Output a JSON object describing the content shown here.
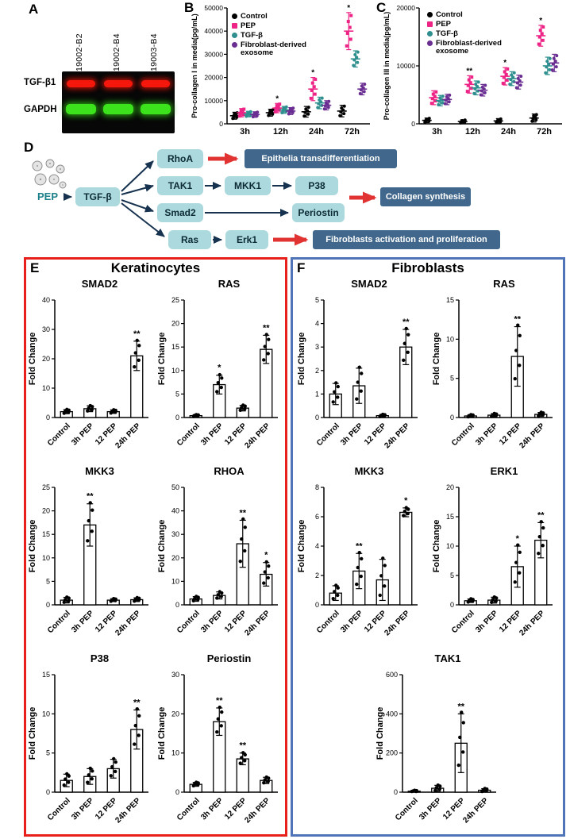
{
  "panel_a": {
    "label": "A",
    "lane_labels": [
      "19002-B2",
      "19002-B4",
      "19003-B4"
    ],
    "row_labels": [
      "TGF-β1",
      "GAPDH"
    ],
    "band_colors": {
      "tgfb1": "#f5170c",
      "gapdh": "#3ce31c"
    }
  },
  "panel_b": {
    "label": "B"
  },
  "panel_c": {
    "label": "C"
  },
  "panel_d": {
    "label": "D",
    "source_label": "PEP",
    "nodes": {
      "tgfb": "TGF-β",
      "rhoa": "RhoA",
      "tak1": "TAK1",
      "mkk1": "MKK1",
      "p38": "P38",
      "smad2": "Smad2",
      "periostin": "Periostin",
      "ras": "Ras",
      "erk1": "Erk1"
    },
    "outcomes": {
      "epithelia": "Epithelia transdifferentiation",
      "collagen": "Collagen synthesis",
      "fibroblasts": "Fibroblasts activation and proliferation"
    },
    "colors": {
      "node_fill": "#abd9de",
      "outcome_fill": "#41688c",
      "arrow": "#16324f",
      "highlight_arrow": "#e23333"
    }
  },
  "panel_e": {
    "label": "E",
    "title": "Keratinocytes",
    "border_color": "#e8201c"
  },
  "panel_f": {
    "label": "F",
    "title": "Fibroblasts",
    "border_color": "#4f74b8"
  },
  "legend": {
    "items": [
      {
        "label": "Control",
        "color": "#000000",
        "marker": "circle"
      },
      {
        "label": "PEP",
        "color": "#ed2386",
        "marker": "square"
      },
      {
        "label": "TGF-β",
        "color": "#2f8f8f",
        "marker": "circle"
      },
      {
        "label": "Fibroblast-derived exosome",
        "color": "#6a2d91",
        "marker": "circle"
      }
    ]
  },
  "chart_data": [
    {
      "id": "pro_collagen_I",
      "panel": "B",
      "type": "scatter",
      "title": "",
      "ylabel": "Pro-collagen I in media(pg/mL)",
      "ylim": [
        0,
        50000
      ],
      "yticks": [
        0,
        10000,
        20000,
        30000,
        40000,
        50000
      ],
      "categories": [
        "3h",
        "12h",
        "24h",
        "72h"
      ],
      "legend_position": "top-left",
      "grid": false,
      "series": [
        {
          "name": "Control",
          "color": "#000000",
          "marker": "circle",
          "means": [
            3500,
            4800,
            5200,
            5500
          ],
          "spreads": [
            1500,
            1500,
            2300,
            2500
          ]
        },
        {
          "name": "PEP",
          "color": "#ed2386",
          "marker": "square",
          "means": [
            4800,
            6800,
            15000,
            40000
          ],
          "spreads": [
            1800,
            2000,
            5000,
            8000
          ],
          "sig": [
            "",
            "*",
            "*",
            "*"
          ]
        },
        {
          "name": "TGF-β",
          "color": "#2f8f8f",
          "marker": "circle",
          "means": [
            4200,
            6000,
            9000,
            28000
          ],
          "spreads": [
            1200,
            1500,
            2500,
            3500
          ]
        },
        {
          "name": "Fibroblast-derived exosome",
          "color": "#6a2d91",
          "marker": "circle",
          "means": [
            4000,
            5500,
            8000,
            15000
          ],
          "spreads": [
            1200,
            1500,
            2000,
            2500
          ]
        }
      ]
    },
    {
      "id": "pro_collagen_III",
      "panel": "C",
      "type": "scatter",
      "title": "",
      "ylabel": "Pro-collagen III in media(pg/mL)",
      "ylim": [
        0,
        20000
      ],
      "yticks": [
        0,
        10000,
        20000
      ],
      "categories": [
        "3h",
        "12h",
        "24h",
        "72h"
      ],
      "legend_position": "top-left",
      "grid": false,
      "series": [
        {
          "name": "Control",
          "color": "#000000",
          "marker": "circle",
          "means": [
            600,
            400,
            500,
            1000
          ],
          "spreads": [
            400,
            300,
            400,
            700
          ]
        },
        {
          "name": "PEP",
          "color": "#ed2386",
          "marker": "square",
          "means": [
            4500,
            6800,
            8200,
            15200
          ],
          "spreads": [
            1200,
            1500,
            1500,
            1800
          ],
          "sig": [
            "",
            "**",
            "*",
            "*"
          ]
        },
        {
          "name": "TGF-β",
          "color": "#2f8f8f",
          "marker": "circle",
          "means": [
            4000,
            6200,
            7800,
            10000
          ],
          "spreads": [
            900,
            1200,
            1200,
            1500
          ]
        },
        {
          "name": "Fibroblast-derived exosome",
          "color": "#6a2d91",
          "marker": "circle",
          "means": [
            4200,
            5800,
            7200,
            10500
          ],
          "spreads": [
            900,
            1000,
            1200,
            1500
          ]
        }
      ]
    },
    {
      "id": "keratinocytes_smad2",
      "panel": "E",
      "type": "bar",
      "title": "SMAD2",
      "ylabel": "Fold Change",
      "ylim": [
        0,
        40
      ],
      "yticks": [
        0,
        10,
        20,
        30,
        40
      ],
      "categories": [
        "Control",
        "3h PEP",
        "12 PEP",
        "24h PEP"
      ],
      "values": [
        2,
        3,
        2,
        21
      ],
      "errors": [
        0.7,
        1,
        0.6,
        5
      ],
      "sig": [
        "",
        "",
        "",
        "**"
      ]
    },
    {
      "id": "keratinocytes_ras",
      "panel": "E",
      "type": "bar",
      "title": "RAS",
      "ylabel": "Fold Change",
      "ylim": [
        0,
        25
      ],
      "yticks": [
        0,
        5,
        10,
        15,
        20,
        25
      ],
      "categories": [
        "Control",
        "3h PEP",
        "12 PEP",
        "24h PEP"
      ],
      "values": [
        0.4,
        7,
        2,
        14.5
      ],
      "errors": [
        0.2,
        2,
        0.6,
        3
      ],
      "sig": [
        "",
        "*",
        "",
        "**"
      ]
    },
    {
      "id": "keratinocytes_mkk3",
      "panel": "E",
      "type": "bar",
      "title": "MKK3",
      "ylabel": "Fold Change",
      "ylim": [
        0,
        25
      ],
      "yticks": [
        0,
        5,
        10,
        15,
        20,
        25
      ],
      "categories": [
        "Control",
        "3h PEP",
        "12 PEP",
        "24h PEP"
      ],
      "values": [
        1,
        17,
        1,
        1.1
      ],
      "errors": [
        0.6,
        4.5,
        0.3,
        0.4
      ],
      "sig": [
        "",
        "**",
        "",
        ""
      ]
    },
    {
      "id": "keratinocytes_rhoa",
      "panel": "E",
      "type": "bar",
      "title": "RHOA",
      "ylabel": "Fold Change",
      "ylim": [
        0,
        50
      ],
      "yticks": [
        0,
        10,
        20,
        30,
        40,
        50
      ],
      "categories": [
        "Control",
        "3h PEP",
        "12 PEP",
        "24h PEP"
      ],
      "values": [
        2.5,
        4,
        26,
        13
      ],
      "errors": [
        1,
        1.5,
        10,
        5
      ],
      "sig": [
        "",
        "",
        "**",
        "*"
      ]
    },
    {
      "id": "keratinocytes_p38",
      "panel": "E",
      "type": "bar",
      "title": "P38",
      "ylabel": "Fold Change",
      "ylim": [
        0,
        15
      ],
      "yticks": [
        0,
        5,
        10,
        15
      ],
      "categories": [
        "Control",
        "3h PEP",
        "12 PEP",
        "24h PEP"
      ],
      "values": [
        1.5,
        2,
        3,
        8
      ],
      "errors": [
        0.8,
        1,
        1.2,
        2.5
      ],
      "sig": [
        "",
        "",
        "",
        "**"
      ]
    },
    {
      "id": "keratinocytes_periostin",
      "panel": "E",
      "type": "bar",
      "title": "Periostin",
      "ylabel": "Fold Change",
      "ylim": [
        0,
        30
      ],
      "yticks": [
        0,
        10,
        20,
        30
      ],
      "categories": [
        "Control",
        "3h PEP",
        "12 PEP",
        "24h PEP"
      ],
      "values": [
        2,
        18,
        8.5,
        3
      ],
      "errors": [
        0.5,
        3.5,
        1.5,
        0.8
      ],
      "sig": [
        "",
        "**",
        "**",
        ""
      ]
    },
    {
      "id": "fibroblasts_smad2",
      "panel": "F",
      "type": "bar",
      "title": "SMAD2",
      "ylabel": "Fold Change",
      "ylim": [
        0,
        5
      ],
      "yticks": [
        0,
        1,
        2,
        3,
        4,
        5
      ],
      "categories": [
        "Control",
        "3h PEP",
        "12 PEP",
        "24h PEP"
      ],
      "values": [
        1,
        1.35,
        0.08,
        3
      ],
      "errors": [
        0.45,
        0.75,
        0.05,
        0.75
      ],
      "sig": [
        "",
        "",
        "",
        "**"
      ]
    },
    {
      "id": "fibroblasts_ras",
      "panel": "F",
      "type": "bar",
      "title": "RAS",
      "ylabel": "Fold Change",
      "ylim": [
        0,
        15
      ],
      "yticks": [
        0,
        5,
        10,
        15
      ],
      "categories": [
        "Control",
        "3h PEP",
        "12 PEP",
        "24h PEP"
      ],
      "values": [
        0.2,
        0.3,
        7.8,
        0.4
      ],
      "errors": [
        0.15,
        0.2,
        3.8,
        0.25
      ],
      "sig": [
        "",
        "",
        "**",
        ""
      ]
    },
    {
      "id": "fibroblasts_mkk3",
      "panel": "F",
      "type": "bar",
      "title": "MKK3",
      "ylabel": "Fold Change",
      "ylim": [
        0,
        8
      ],
      "yticks": [
        0,
        2,
        4,
        6,
        8
      ],
      "categories": [
        "Control",
        "3h PEP",
        "12 PEP",
        "24h PEP"
      ],
      "values": [
        0.8,
        2.3,
        1.7,
        6.3
      ],
      "errors": [
        0.5,
        1.2,
        1.4,
        0.3
      ],
      "sig": [
        "",
        "**",
        "",
        "*"
      ]
    },
    {
      "id": "fibroblasts_erk1",
      "panel": "F",
      "type": "bar",
      "title": "ERK1",
      "ylabel": "Fold Change",
      "ylim": [
        0,
        20
      ],
      "yticks": [
        0,
        5,
        10,
        15,
        20
      ],
      "categories": [
        "Control",
        "3h PEP",
        "12 PEP",
        "24h PEP"
      ],
      "values": [
        0.7,
        0.8,
        6.5,
        11
      ],
      "errors": [
        0.3,
        0.5,
        3.5,
        3
      ],
      "sig": [
        "",
        "",
        "*",
        "**"
      ]
    },
    {
      "id": "fibroblasts_tak1",
      "panel": "F",
      "type": "bar",
      "title": "TAK1",
      "ylabel": "Fold Change",
      "ylim": [
        0,
        600
      ],
      "yticks": [
        0,
        200,
        400,
        600
      ],
      "categories": [
        "Control",
        "3h PEP",
        "12 PEP",
        "24h PEP"
      ],
      "values": [
        5,
        20,
        250,
        10
      ],
      "errors": [
        4,
        15,
        150,
        8
      ],
      "sig": [
        "",
        "",
        "**",
        ""
      ]
    }
  ]
}
